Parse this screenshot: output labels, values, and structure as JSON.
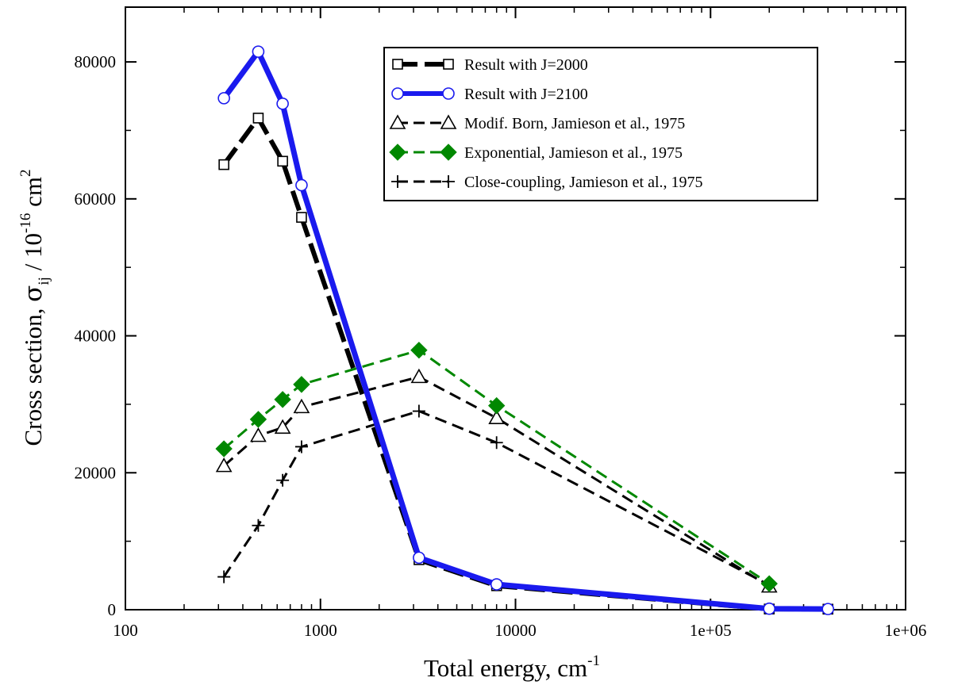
{
  "chart_data": {
    "type": "line",
    "xscale": "log",
    "xlim": [
      100,
      1000000
    ],
    "ylim": [
      0,
      88000
    ],
    "grid": false,
    "legend_position": "top-right",
    "x_ticks": [
      100,
      1000,
      10000,
      100000,
      1000000
    ],
    "x_tick_labels": [
      "100",
      "1000",
      "10000",
      "1e+05",
      "1e+06"
    ],
    "y_ticks": [
      0,
      20000,
      40000,
      60000,
      80000
    ],
    "y_tick_labels": [
      "0",
      "20000",
      "40000",
      "60000",
      "80000"
    ],
    "xlabel": {
      "main": "Total energy, cm",
      "sup": "-1"
    },
    "ylabel": {
      "main": "Cross section, ",
      "sigma": "σ",
      "sub": "ij",
      "mid": " / 10",
      "sup1": "-16",
      "unit": " cm",
      "sup2": "2"
    },
    "series": [
      {
        "name": "Result with J=2000",
        "color": "#000000",
        "line": "thick-dashed",
        "marker": "square",
        "x": [
          320,
          480,
          640,
          800,
          3200,
          8000,
          200000,
          400000
        ],
        "y": [
          65000,
          71800,
          65500,
          57300,
          7300,
          3500,
          100,
          80
        ]
      },
      {
        "name": "Result with J=2100",
        "color": "#1a1aee",
        "line": "thick-solid",
        "marker": "circle",
        "x": [
          320,
          480,
          640,
          800,
          3200,
          8000,
          200000,
          400000
        ],
        "y": [
          74700,
          81500,
          73900,
          62000,
          7600,
          3700,
          150,
          100
        ]
      },
      {
        "name": "Modif. Born, Jamieson et al., 1975",
        "color": "#000000",
        "line": "dashed",
        "marker": "triangle",
        "x": [
          320,
          480,
          640,
          800,
          3200,
          8000,
          200000
        ],
        "y": [
          21000,
          25400,
          26600,
          29600,
          34000,
          28000,
          3400
        ]
      },
      {
        "name": "Exponential, Jamieson et al., 1975",
        "color": "#008800",
        "line": "dashed",
        "marker": "diamond",
        "x": [
          320,
          480,
          640,
          800,
          3200,
          8000,
          200000
        ],
        "y": [
          23500,
          27800,
          30700,
          32900,
          37900,
          29800,
          3800
        ]
      },
      {
        "name": "Close-coupling, Jamieson et al., 1975",
        "color": "#000000",
        "line": "dashed",
        "marker": "plus",
        "x": [
          320,
          480,
          640,
          800,
          3200,
          8000,
          200000
        ],
        "y": [
          4800,
          12300,
          18900,
          23800,
          29000,
          24400,
          3600
        ]
      }
    ]
  }
}
